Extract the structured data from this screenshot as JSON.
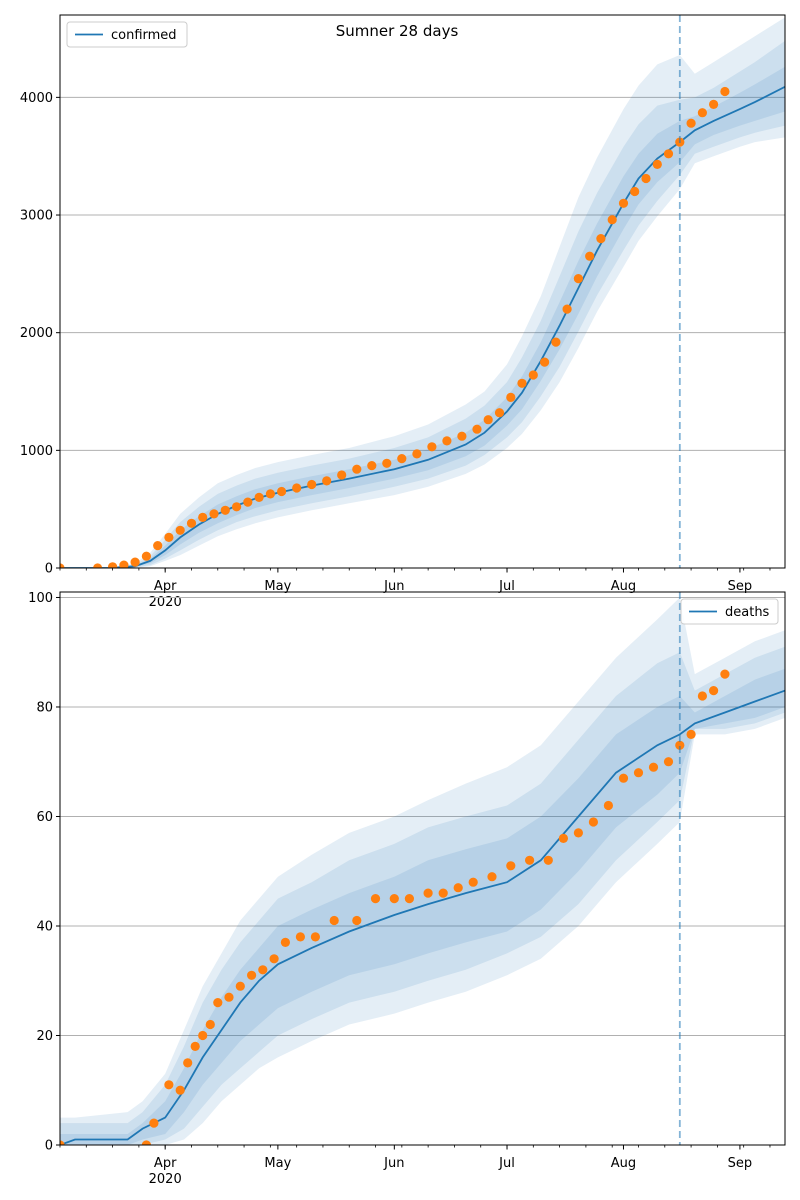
{
  "figure": {
    "title": "Sumner 28 days"
  },
  "styles": {
    "line_color": "#1f77b4",
    "observed_color": "#ff7f0e",
    "band_color": "#1f77b4",
    "grid_color": "#b0b0b0",
    "vline_color": "#1f77b4"
  },
  "chart_data": [
    {
      "type": "line",
      "name": "confirmed-panel",
      "x_type": "date",
      "xlim": [
        "2020-03-04",
        "2020-09-13"
      ],
      "ylim": [
        0,
        4700
      ],
      "grid": "horizontal",
      "legend": {
        "position": "top-left",
        "entries": [
          "confirmed"
        ]
      },
      "x_tick_labels": [
        {
          "date": "2020-04-01",
          "label": "Apr",
          "sublabel": "2020"
        },
        {
          "date": "2020-05-01",
          "label": "May",
          "sublabel": ""
        },
        {
          "date": "2020-06-01",
          "label": "Jun",
          "sublabel": ""
        },
        {
          "date": "2020-07-01",
          "label": "Jul",
          "sublabel": ""
        },
        {
          "date": "2020-08-01",
          "label": "Aug",
          "sublabel": ""
        },
        {
          "date": "2020-09-01",
          "label": "Sep",
          "sublabel": ""
        }
      ],
      "y_ticks": [
        0,
        1000,
        2000,
        3000,
        4000
      ],
      "y_tick_labels": [
        "0",
        "1000",
        "2000",
        "3000",
        "4000"
      ],
      "forecast_start": "2020-08-16",
      "model": {
        "dates": [
          "2020-03-04",
          "2020-03-10",
          "2020-03-17",
          "2020-03-24",
          "2020-03-28",
          "2020-04-01",
          "2020-04-05",
          "2020-04-10",
          "2020-04-15",
          "2020-04-20",
          "2020-04-25",
          "2020-05-01",
          "2020-05-10",
          "2020-05-20",
          "2020-06-01",
          "2020-06-10",
          "2020-06-20",
          "2020-06-25",
          "2020-07-01",
          "2020-07-05",
          "2020-07-10",
          "2020-07-15",
          "2020-07-20",
          "2020-07-25",
          "2020-08-01",
          "2020-08-05",
          "2020-08-10",
          "2020-08-16",
          "2020-08-20",
          "2020-08-25",
          "2020-09-01",
          "2020-09-05",
          "2020-09-13"
        ],
        "median": [
          0,
          0,
          0,
          15,
          60,
          150,
          260,
          370,
          460,
          530,
          590,
          640,
          700,
          760,
          840,
          920,
          1050,
          1150,
          1330,
          1490,
          1760,
          2060,
          2380,
          2700,
          3100,
          3310,
          3480,
          3620,
          3720,
          3800,
          3900,
          3960,
          4090
        ],
        "band_68": [
          [
            0,
            0,
            0,
            10,
            40,
            110,
            200,
            300,
            380,
            450,
            510,
            560,
            620,
            680,
            760,
            830,
            950,
            1040,
            1210,
            1350,
            1590,
            1860,
            2160,
            2480,
            2880,
            3090,
            3280,
            3450,
            3600,
            3680,
            3760,
            3800,
            3880
          ],
          [
            0,
            0,
            0,
            20,
            80,
            190,
            320,
            440,
            540,
            610,
            670,
            720,
            780,
            840,
            920,
            1010,
            1150,
            1260,
            1450,
            1630,
            1920,
            2260,
            2610,
            2930,
            3330,
            3520,
            3690,
            3800,
            3840,
            3920,
            4040,
            4110,
            4260
          ]
        ],
        "band_95": [
          [
            0,
            0,
            0,
            5,
            25,
            80,
            150,
            240,
            320,
            390,
            440,
            490,
            550,
            610,
            690,
            760,
            870,
            960,
            1110,
            1240,
            1460,
            1710,
            2010,
            2320,
            2700,
            2910,
            3120,
            3340,
            3520,
            3580,
            3660,
            3700,
            3760
          ],
          [
            0,
            0,
            0,
            30,
            100,
            240,
            390,
            520,
            630,
            700,
            760,
            810,
            870,
            930,
            1020,
            1110,
            1270,
            1380,
            1580,
            1790,
            2100,
            2480,
            2860,
            3190,
            3580,
            3770,
            3930,
            3980,
            4000,
            4080,
            4220,
            4300,
            4480
          ]
        ],
        "band_99": [
          [
            0,
            0,
            0,
            2,
            15,
            60,
            110,
            190,
            270,
            330,
            380,
            430,
            490,
            550,
            620,
            690,
            800,
            880,
            1020,
            1140,
            1340,
            1580,
            1870,
            2180,
            2560,
            2780,
            2990,
            3220,
            3440,
            3500,
            3580,
            3620,
            3660
          ],
          [
            0,
            0,
            0,
            40,
            130,
            290,
            460,
            600,
            720,
            790,
            850,
            900,
            960,
            1020,
            1120,
            1220,
            1390,
            1500,
            1730,
            1970,
            2310,
            2730,
            3150,
            3490,
            3900,
            4100,
            4280,
            4360,
            4200,
            4300,
            4440,
            4520,
            4680
          ]
        ]
      },
      "observed": {
        "dates": [
          "2020-03-04",
          "2020-03-14",
          "2020-03-18",
          "2020-03-21",
          "2020-03-24",
          "2020-03-27",
          "2020-03-30",
          "2020-04-02",
          "2020-04-05",
          "2020-04-08",
          "2020-04-11",
          "2020-04-14",
          "2020-04-17",
          "2020-04-20",
          "2020-04-23",
          "2020-04-26",
          "2020-04-29",
          "2020-05-02",
          "2020-05-06",
          "2020-05-10",
          "2020-05-14",
          "2020-05-18",
          "2020-05-22",
          "2020-05-26",
          "2020-05-30",
          "2020-06-03",
          "2020-06-07",
          "2020-06-11",
          "2020-06-15",
          "2020-06-19",
          "2020-06-23",
          "2020-06-26",
          "2020-06-29",
          "2020-07-02",
          "2020-07-05",
          "2020-07-08",
          "2020-07-11",
          "2020-07-14",
          "2020-07-17",
          "2020-07-20",
          "2020-07-23",
          "2020-07-26",
          "2020-07-29",
          "2020-08-01",
          "2020-08-04",
          "2020-08-07",
          "2020-08-10",
          "2020-08-13",
          "2020-08-16",
          "2020-08-19",
          "2020-08-22",
          "2020-08-25",
          "2020-08-28"
        ],
        "values": [
          0,
          0,
          10,
          25,
          50,
          100,
          190,
          260,
          320,
          380,
          430,
          460,
          490,
          520,
          560,
          600,
          630,
          650,
          680,
          710,
          740,
          790,
          840,
          870,
          890,
          930,
          970,
          1030,
          1080,
          1120,
          1180,
          1260,
          1320,
          1450,
          1570,
          1640,
          1750,
          1920,
          2200,
          2460,
          2650,
          2800,
          2960,
          3100,
          3200,
          3310,
          3430,
          3520,
          3620,
          3780,
          3870,
          3940,
          4050
        ]
      }
    },
    {
      "type": "line",
      "name": "deaths-panel",
      "x_type": "date",
      "xlim": [
        "2020-03-04",
        "2020-09-13"
      ],
      "ylim": [
        0,
        101
      ],
      "grid": "horizontal",
      "legend": {
        "position": "top-right",
        "entries": [
          "deaths"
        ]
      },
      "x_tick_labels": [
        {
          "date": "2020-04-01",
          "label": "Apr",
          "sublabel": "2020"
        },
        {
          "date": "2020-05-01",
          "label": "May",
          "sublabel": ""
        },
        {
          "date": "2020-06-01",
          "label": "Jun",
          "sublabel": ""
        },
        {
          "date": "2020-07-01",
          "label": "Jul",
          "sublabel": ""
        },
        {
          "date": "2020-08-01",
          "label": "Aug",
          "sublabel": ""
        },
        {
          "date": "2020-09-01",
          "label": "Sep",
          "sublabel": ""
        }
      ],
      "y_ticks": [
        0,
        20,
        40,
        60,
        80,
        100
      ],
      "y_tick_labels": [
        "0",
        "20",
        "40",
        "60",
        "80",
        "100"
      ],
      "forecast_start": "2020-08-16",
      "model": {
        "dates": [
          "2020-03-04",
          "2020-03-08",
          "2020-03-22",
          "2020-03-26",
          "2020-04-01",
          "2020-04-06",
          "2020-04-11",
          "2020-04-16",
          "2020-04-21",
          "2020-04-26",
          "2020-05-01",
          "2020-05-10",
          "2020-05-20",
          "2020-06-01",
          "2020-06-10",
          "2020-06-20",
          "2020-07-01",
          "2020-07-10",
          "2020-07-20",
          "2020-07-30",
          "2020-08-10",
          "2020-08-16",
          "2020-08-20",
          "2020-08-28",
          "2020-09-05",
          "2020-09-13"
        ],
        "median": [
          0,
          1,
          1,
          3,
          5,
          10,
          16,
          21,
          26,
          30,
          33,
          36,
          39,
          42,
          44,
          46,
          48,
          52,
          60,
          68,
          73,
          75,
          77,
          79,
          81,
          83
        ],
        "band_68": [
          [
            0,
            0,
            0,
            1,
            2,
            6,
            11,
            15,
            19,
            22,
            25,
            28,
            31,
            33,
            35,
            37,
            39,
            43,
            50,
            58,
            64,
            68,
            76,
            77,
            78,
            80
          ],
          [
            2,
            2,
            2,
            4,
            8,
            14,
            21,
            27,
            32,
            36,
            40,
            43,
            46,
            49,
            52,
            54,
            56,
            60,
            67,
            75,
            80,
            82,
            79,
            82,
            85,
            87
          ]
        ],
        "band_95": [
          [
            0,
            0,
            0,
            0,
            1,
            3,
            7,
            11,
            14,
            17,
            20,
            23,
            26,
            28,
            30,
            32,
            35,
            38,
            44,
            52,
            59,
            63,
            76,
            76,
            77,
            79
          ],
          [
            4,
            4,
            4,
            6,
            11,
            18,
            26,
            32,
            37,
            41,
            45,
            48,
            52,
            55,
            58,
            60,
            62,
            66,
            74,
            82,
            88,
            90,
            83,
            86,
            89,
            91
          ]
        ],
        "band_99": [
          [
            0,
            0,
            0,
            0,
            0,
            1,
            4,
            8,
            11,
            14,
            16,
            19,
            22,
            24,
            26,
            28,
            31,
            34,
            40,
            48,
            55,
            59,
            75,
            75,
            76,
            78
          ],
          [
            5,
            5,
            6,
            8,
            13,
            21,
            29,
            35,
            41,
            45,
            49,
            53,
            57,
            60,
            63,
            66,
            69,
            73,
            81,
            89,
            96,
            100,
            86,
            89,
            92,
            94
          ]
        ]
      },
      "observed": {
        "dates": [
          "2020-03-04",
          "2020-03-27",
          "2020-03-29",
          "2020-04-02",
          "2020-04-05",
          "2020-04-07",
          "2020-04-09",
          "2020-04-11",
          "2020-04-13",
          "2020-04-15",
          "2020-04-18",
          "2020-04-21",
          "2020-04-24",
          "2020-04-27",
          "2020-04-30",
          "2020-05-03",
          "2020-05-07",
          "2020-05-11",
          "2020-05-16",
          "2020-05-22",
          "2020-05-27",
          "2020-06-01",
          "2020-06-05",
          "2020-06-10",
          "2020-06-14",
          "2020-06-18",
          "2020-06-22",
          "2020-06-27",
          "2020-07-02",
          "2020-07-07",
          "2020-07-12",
          "2020-07-16",
          "2020-07-20",
          "2020-07-24",
          "2020-07-28",
          "2020-08-01",
          "2020-08-05",
          "2020-08-09",
          "2020-08-13",
          "2020-08-16",
          "2020-08-19",
          "2020-08-22",
          "2020-08-25",
          "2020-08-28"
        ],
        "values": [
          0,
          0,
          4,
          11,
          10,
          15,
          18,
          20,
          22,
          26,
          27,
          29,
          31,
          32,
          34,
          37,
          38,
          38,
          41,
          41,
          45,
          45,
          45,
          46,
          46,
          47,
          48,
          49,
          51,
          52,
          52,
          56,
          57,
          59,
          62,
          67,
          68,
          69,
          70,
          73,
          75,
          82,
          83,
          86
        ]
      }
    }
  ]
}
